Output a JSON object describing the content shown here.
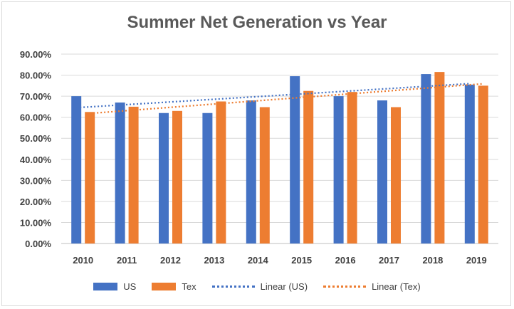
{
  "chart_data": {
    "type": "bar",
    "title": "Summer Net Generation vs Year",
    "categories": [
      "2010",
      "2011",
      "2012",
      "2013",
      "2014",
      "2015",
      "2016",
      "2017",
      "2018",
      "2019"
    ],
    "series": [
      {
        "name": "US",
        "color": "#4472C4",
        "values": [
          0.7,
          0.67,
          0.62,
          0.62,
          0.68,
          0.795,
          0.7,
          0.68,
          0.805,
          0.755
        ]
      },
      {
        "name": "Tex",
        "color": "#ED7D31",
        "values": [
          0.625,
          0.65,
          0.63,
          0.675,
          0.648,
          0.725,
          0.72,
          0.648,
          0.815,
          0.75
        ]
      }
    ],
    "trendlines": [
      {
        "name": "Linear (US)",
        "color": "#4472C4",
        "type": "linear",
        "series": "US"
      },
      {
        "name": "Linear (Tex)",
        "color": "#ED7D31",
        "type": "linear",
        "series": "Tex"
      }
    ],
    "ylim": [
      0,
      0.9
    ],
    "yticks": [
      "0.00%",
      "10.00%",
      "20.00%",
      "30.00%",
      "40.00%",
      "50.00%",
      "60.00%",
      "70.00%",
      "80.00%",
      "90.00%"
    ],
    "grid": true,
    "legend": "bottom"
  }
}
